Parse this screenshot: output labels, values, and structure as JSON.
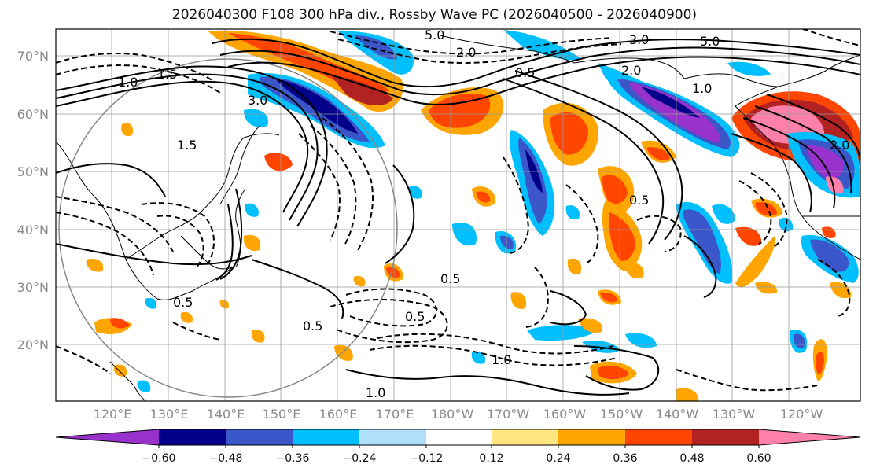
{
  "title": "2026040300 F108 300 hPa div., Rossby Wave PC (2026040500 - 2026040900)",
  "map": {
    "lat_labels": [
      "70°N",
      "60°N",
      "50°N",
      "40°N",
      "30°N",
      "20°N"
    ],
    "lon_labels": [
      "120°E",
      "130°E",
      "140°E",
      "150°E",
      "160°E",
      "170°E",
      "180°W",
      "170°W",
      "160°W",
      "150°W",
      "140°W",
      "130°W",
      "120°W"
    ],
    "contour_labels": [
      "5.0",
      "3.0",
      "2.0",
      "1.5",
      "1.0",
      "0.5",
      "2.0",
      "1.5",
      "1.0",
      "0.5",
      "0.5",
      "0.5",
      "1.0",
      "1.0",
      "0.5",
      "0.5",
      "3.0",
      "5.0",
      "2.0"
    ]
  },
  "colorbar": {
    "ticks": [
      "−0.60",
      "−0.48",
      "−0.36",
      "−0.24",
      "−0.12",
      "0.12",
      "0.24",
      "0.36",
      "0.48",
      "0.60"
    ],
    "colors": [
      "#9932CC",
      "#00008B",
      "#3A56C8",
      "#00BFFF",
      "#B0E0FA",
      "#FFFFFF",
      "#FFE680",
      "#FFA500",
      "#FF4500",
      "#B22222",
      "#FF80AA"
    ]
  }
}
